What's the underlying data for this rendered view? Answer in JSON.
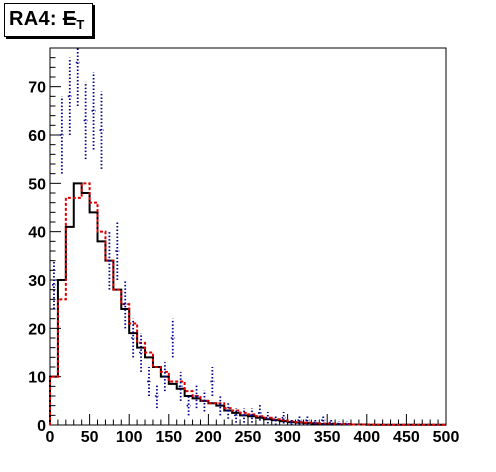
{
  "title": {
    "prefix": "RA4: ",
    "symbol": "E",
    "subscript": "T"
  },
  "chart_data": {
    "type": "line",
    "title": "RA4: E̸T",
    "xlabel": "",
    "ylabel": "",
    "xlim": [
      0,
      500
    ],
    "ylim": [
      0,
      78
    ],
    "x_ticks": [
      0,
      50,
      100,
      150,
      200,
      250,
      300,
      350,
      400,
      450,
      500
    ],
    "y_ticks": [
      0,
      10,
      20,
      30,
      40,
      50,
      60,
      70
    ],
    "grid": false,
    "legend": "none",
    "bin_width": 10,
    "bin_edges_start": 0,
    "series": [
      {
        "style": "solid-step",
        "color": "#000000",
        "values": [
          10,
          30,
          41,
          50,
          48,
          44,
          38,
          34,
          28,
          24,
          19,
          16,
          14,
          12,
          10,
          8.5,
          7.5,
          6,
          5.5,
          5,
          4.5,
          4,
          3,
          2.5,
          2,
          1.8,
          1.5,
          1.2,
          1,
          0.8,
          0.6,
          0.5,
          0.4,
          0.3,
          0.2,
          0.2,
          0.1,
          0.1,
          0.1,
          0.1,
          0.05,
          0.05,
          0.05,
          0.05,
          0.05,
          0.05,
          0.05,
          0.05,
          0.05,
          0.05
        ]
      },
      {
        "style": "dashed-step",
        "color": "#dd0000",
        "values": [
          10,
          26,
          47,
          47,
          50,
          46,
          40,
          34,
          28,
          25,
          21,
          17,
          15,
          12,
          11,
          9,
          9,
          7,
          6,
          5,
          4.5,
          4.5,
          3.5,
          3,
          2.5,
          2.2,
          1.8,
          1.5,
          1.2,
          1,
          0.8,
          0.6,
          0.5,
          0.4,
          0.3,
          0.3,
          0.2,
          0.2,
          0.1,
          0.1,
          0.1,
          0.05,
          0.05,
          0.05,
          0.05,
          0.05,
          0.05,
          0.05,
          0.05,
          0.05
        ]
      },
      {
        "style": "dotted-errorbars",
        "color": "#00008b",
        "values": [
          29,
          60,
          68,
          75,
          63,
          65,
          61,
          34,
          36,
          25,
          18,
          15,
          9,
          6,
          10,
          18,
          8,
          4,
          6,
          5,
          9,
          4,
          3,
          2,
          2,
          2,
          2.5,
          1.5,
          1,
          1.5,
          0.5,
          1,
          1,
          0.5,
          1,
          0.5,
          0.3,
          0.3,
          0,
          0,
          0,
          0,
          0,
          0,
          0,
          0,
          0,
          0,
          0,
          0
        ],
        "errors": [
          5,
          8,
          8,
          9,
          8,
          8,
          8,
          6,
          6,
          5,
          4,
          4,
          3,
          2.5,
          3,
          4,
          3,
          2,
          2.5,
          2.2,
          3,
          2,
          1.7,
          1.5,
          1.5,
          1.5,
          1.6,
          1.2,
          1,
          1.2,
          0.7,
          1,
          1,
          0.7,
          1,
          0.7,
          0.5,
          0.5,
          0,
          0,
          0,
          0,
          0,
          0,
          0,
          0,
          0,
          0,
          0,
          0
        ]
      }
    ]
  }
}
